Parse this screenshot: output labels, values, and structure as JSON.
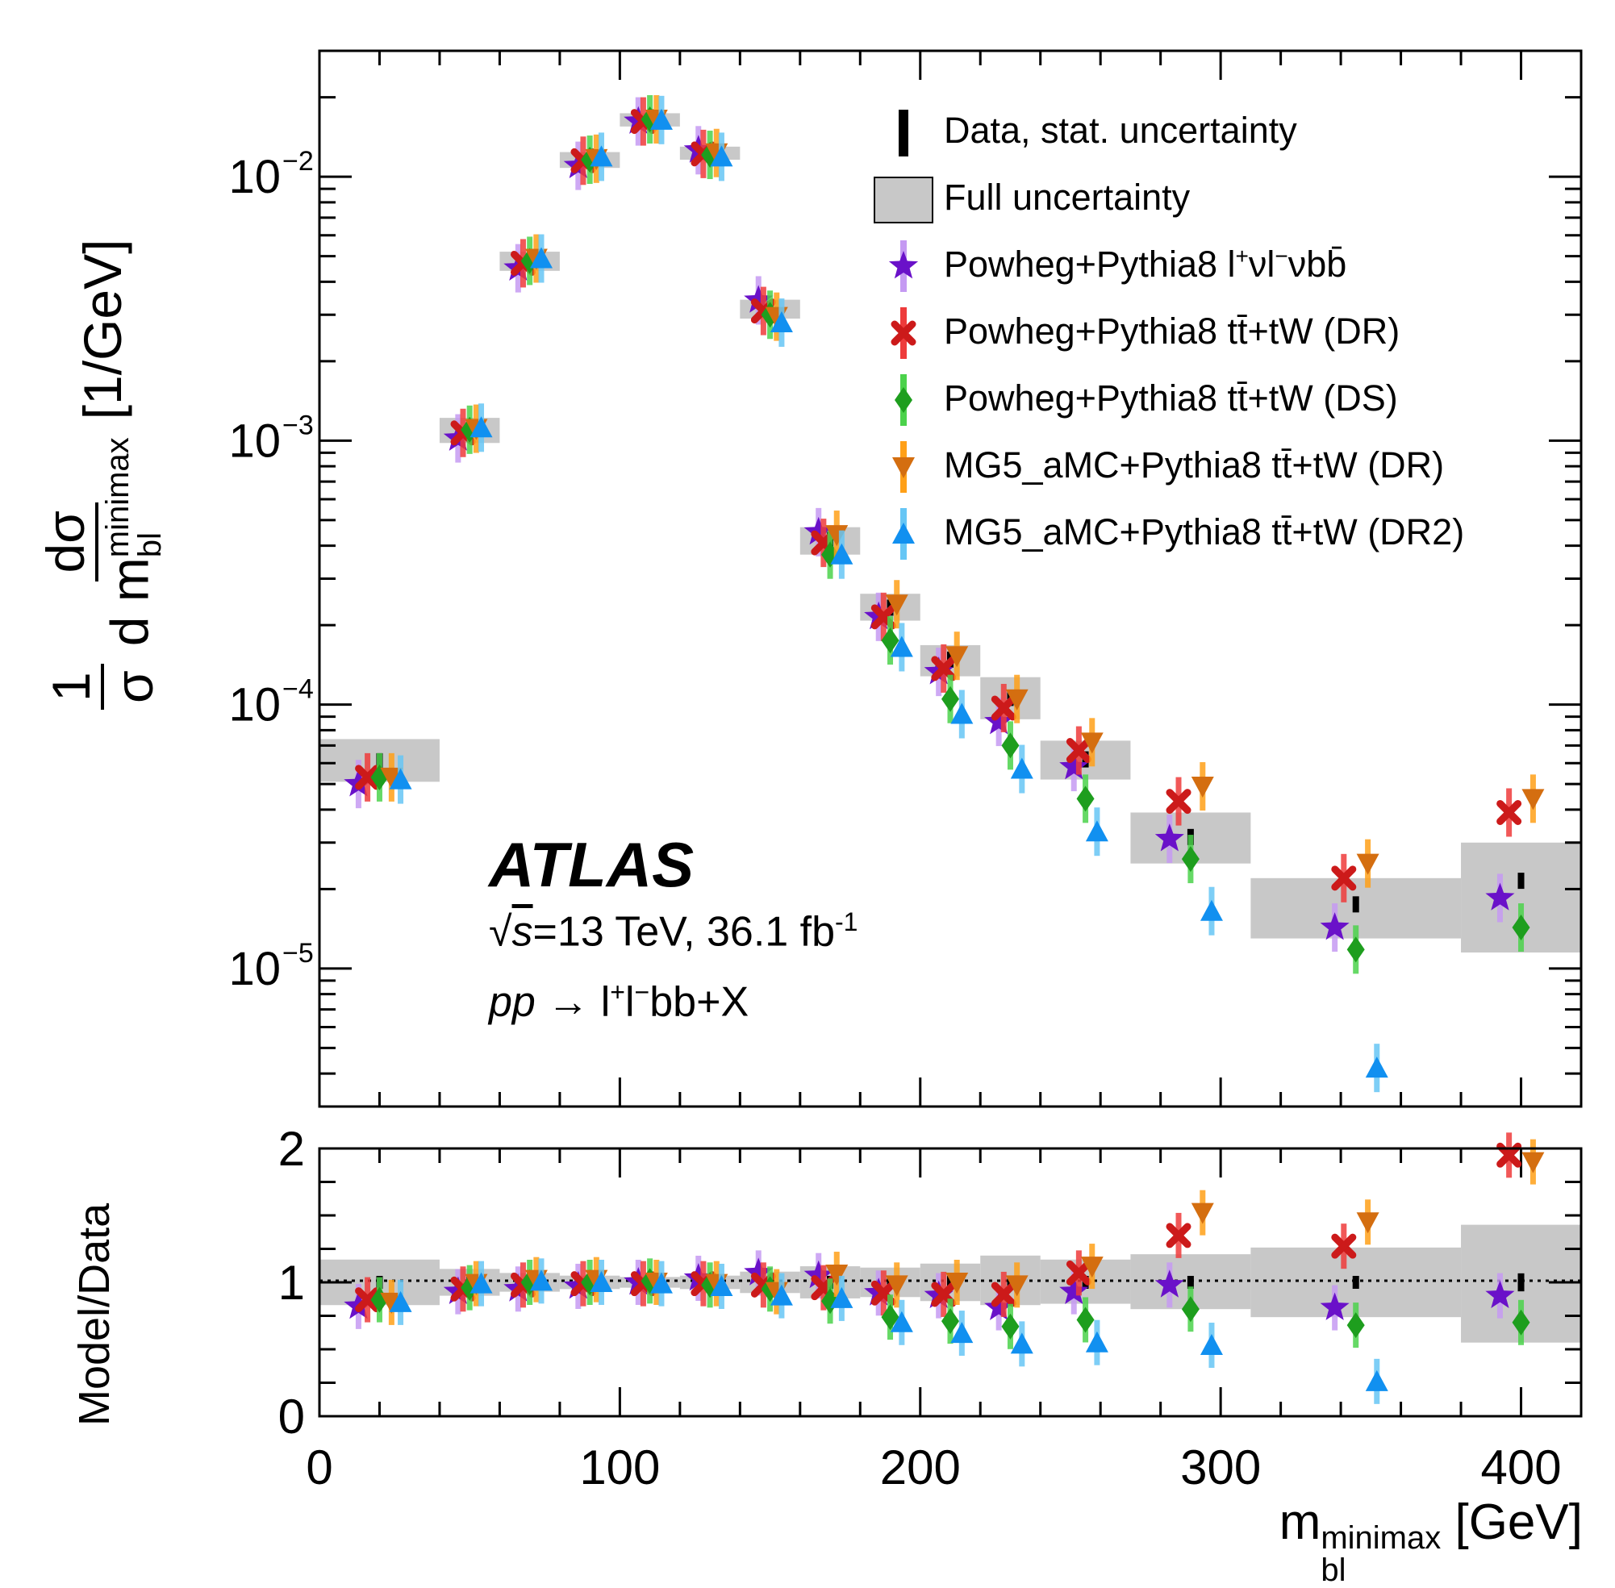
{
  "chart_data": [
    {
      "type": "scatter",
      "panel": "main",
      "xlabel": "m_bl^minimax [GeV]",
      "ylabel": "1/σ dσ/d m_bl^minimax [1/GeV]",
      "yscale": "log",
      "xlim": [
        0,
        420
      ],
      "ylim": [
        3e-06,
        0.03
      ],
      "x_tick_labels": [
        "0",
        "100",
        "200",
        "300",
        "400"
      ],
      "y_tick_labels": [
        {
          "value": 0.01,
          "mantissa": "10",
          "exponent": "−2"
        },
        {
          "value": 0.001,
          "mantissa": "10",
          "exponent": "−3"
        },
        {
          "value": 0.0001,
          "mantissa": "10",
          "exponent": "−4"
        },
        {
          "value": 1e-05,
          "mantissa": "10",
          "exponent": "−5"
        }
      ],
      "bins": [
        [
          0,
          40
        ],
        [
          40,
          60
        ],
        [
          60,
          80
        ],
        [
          80,
          100
        ],
        [
          100,
          120
        ],
        [
          120,
          140
        ],
        [
          140,
          160
        ],
        [
          160,
          180
        ],
        [
          180,
          200
        ],
        [
          200,
          220
        ],
        [
          220,
          240
        ],
        [
          240,
          270
        ],
        [
          270,
          310
        ],
        [
          310,
          380
        ],
        [
          380,
          420
        ]
      ],
      "data": {
        "name": "Data, stat. uncertainty",
        "color": "#000000",
        "values": [
          6.1e-05,
          0.00109,
          0.0048,
          0.0116,
          0.0164,
          0.0123,
          0.00315,
          0.00042,
          0.000233,
          0.000148,
          0.000106,
          6.2e-05,
          3.15e-05,
          1.75e-05,
          2.15e-05
        ],
        "full_unc_lo": [
          5.1e-05,
          0.00098,
          0.0044,
          0.0108,
          0.0155,
          0.0116,
          0.0029,
          0.00037,
          0.000208,
          0.000128,
          8.8e-05,
          5.2e-05,
          2.5e-05,
          1.3e-05,
          1.15e-05
        ],
        "full_unc_hi": [
          7.4e-05,
          0.00122,
          0.0052,
          0.0124,
          0.0174,
          0.013,
          0.00342,
          0.00047,
          0.000263,
          0.000168,
          0.000127,
          7.3e-05,
          3.9e-05,
          2.2e-05,
          3e-05
        ]
      },
      "legend_full_unc": "Full uncertainty",
      "series": [
        {
          "name": "Powheg+Pythia8 l+νl−νbb̄",
          "marker": "star",
          "color": "#6a11c9",
          "err_color": "#c59af2",
          "values": [
            5e-05,
            0.00102,
            0.0045,
            0.011,
            0.0162,
            0.0126,
            0.0034,
            0.00045,
            0.000215,
            0.000133,
            8.6e-05,
            5.8e-05,
            3.1e-05,
            1.43e-05,
            1.85e-05
          ]
        },
        {
          "name": "Powheg+Pythia8 tt̄+tW (DR)",
          "marker": "x",
          "color": "#cc1a1a",
          "err_color": "#ee3b3b",
          "values": [
            5.3e-05,
            0.00107,
            0.0047,
            0.0115,
            0.0162,
            0.0122,
            0.0031,
            0.00041,
            0.000215,
            0.000137,
            9.7e-05,
            6.7e-05,
            4.3e-05,
            2.2e-05,
            3.9e-05
          ]
        },
        {
          "name": "Powheg+Pythia8 tt̄+tW (DS)",
          "marker": "diamond",
          "color": "#1e9e1e",
          "err_color": "#4bd24b",
          "values": [
            5.3e-05,
            0.0011,
            0.0048,
            0.0116,
            0.0165,
            0.0121,
            0.003,
            0.00037,
            0.000175,
            0.000105,
            7e-05,
            4.4e-05,
            2.6e-05,
            1.18e-05,
            1.43e-05
          ]
        },
        {
          "name": "MG5_aMC+Pythia8 tt̄+tW (DR)",
          "marker": "tri_down",
          "color": "#d46e10",
          "err_color": "#ffa018",
          "values": [
            5.3e-05,
            0.00111,
            0.0049,
            0.0117,
            0.0165,
            0.0123,
            0.00295,
            0.00044,
            0.00024,
            0.000153,
            0.000105,
            7.2e-05,
            4.9e-05,
            2.5e-05,
            4.4e-05
          ]
        },
        {
          "name": "MG5_aMC+Pythia8 tt̄+tW (DR2)",
          "marker": "tri_up",
          "color": "#1190f0",
          "err_color": "#66c6f5",
          "values": [
            5.2e-05,
            0.00112,
            0.0049,
            0.0119,
            0.0164,
            0.0119,
            0.0028,
            0.00037,
            0.000165,
            9.2e-05,
            5.7e-05,
            3.3e-05,
            1.65e-05,
            4.2e-06,
            null
          ]
        }
      ]
    },
    {
      "type": "scatter",
      "panel": "ratio",
      "xlabel": "m_bl^minimax [GeV]",
      "ylabel": "Model/Data",
      "xlim": [
        0,
        420
      ],
      "ylim": [
        0,
        2
      ],
      "x_tick_labels": [
        "0",
        "100",
        "200",
        "300",
        "400"
      ],
      "y_tick_labels": [
        "0",
        "1",
        "2"
      ],
      "reference_line": 1,
      "data_full_unc_lo": [
        0.83,
        0.9,
        0.93,
        0.95,
        0.96,
        0.95,
        0.92,
        0.88,
        0.89,
        0.86,
        0.83,
        0.84,
        0.8,
        0.74,
        0.55
      ],
      "data_full_unc_hi": [
        1.17,
        1.1,
        1.07,
        1.05,
        1.04,
        1.05,
        1.08,
        1.12,
        1.11,
        1.14,
        1.2,
        1.17,
        1.21,
        1.26,
        1.43
      ],
      "series": [
        {
          "name": "Powheg+Pythia8 l+νl−νbb̄",
          "values": [
            0.82,
            0.93,
            0.95,
            0.97,
            1.0,
            1.03,
            1.07,
            1.05,
            0.92,
            0.9,
            0.81,
            0.93,
            0.98,
            0.81,
            0.9
          ]
        },
        {
          "name": "Powheg+Pythia8 tt̄+tW (DR)",
          "values": [
            0.87,
            0.95,
            0.98,
            0.99,
            0.99,
            0.99,
            0.98,
            0.96,
            0.92,
            0.91,
            0.91,
            1.07,
            1.35,
            1.27,
            1.95
          ]
        },
        {
          "name": "Powheg+Pythia8 tt̄+tW (DS)",
          "values": [
            0.87,
            0.96,
            1.0,
            1.0,
            1.01,
            0.98,
            0.95,
            0.86,
            0.74,
            0.71,
            0.67,
            0.72,
            0.8,
            0.68,
            0.7
          ]
        },
        {
          "name": "MG5_aMC+Pythia8 tt̄+tW (DR)",
          "values": [
            0.85,
            0.99,
            1.02,
            1.02,
            1.0,
            0.99,
            0.93,
            1.06,
            0.98,
            1.0,
            0.98,
            1.12,
            1.52,
            1.45,
            1.9
          ]
        },
        {
          "name": "MG5_aMC+Pythia8 tt̄+tW (DR2)",
          "values": [
            0.85,
            0.99,
            1.01,
            1.0,
            0.99,
            0.97,
            0.9,
            0.88,
            0.7,
            0.62,
            0.54,
            0.55,
            0.53,
            0.26,
            null
          ]
        }
      ]
    }
  ],
  "texts": {
    "legend_data": "Data, stat. uncertainty",
    "legend_full": "Full uncertainty",
    "legend_powheg_llbb": "Powheg+Pythia8 l",
    "legend_powheg_llbb_sup1": "+",
    "legend_powheg_llbb_mid": "νl",
    "legend_powheg_llbb_sup2": "−",
    "legend_powheg_llbb_end": "νbb̄",
    "legend_dr": "Powheg+Pythia8 tt̄+tW (DR)",
    "legend_ds": "Powheg+Pythia8 tt̄+tW (DS)",
    "legend_mg_dr": "MG5_aMC+Pythia8 tt̄+tW (DR)",
    "legend_mg_dr2": "MG5_aMC+Pythia8 tt̄+tW (DR2)",
    "atlas": "ATLAS",
    "sqrt": "√",
    "energy_s": "s",
    "energy_rest": "=13 TeV, 36.1 fb",
    "energy_exp": "-1",
    "process_pp": "pp",
    "process_rest": " → l",
    "process_sup1": "+",
    "process_mid": "l",
    "process_sup2": "−",
    "process_end": "bb+X",
    "ylabel_one": "1",
    "ylabel_sigma": "σ",
    "ylabel_dsigma": "dσ",
    "ylabel_d": "d m",
    "ylabel_sub": "bl",
    "ylabel_sup": "minimax",
    "ylabel_unit": "[1/GeV]",
    "ratio_ylabel": "Model/Data",
    "xlabel_m": "m",
    "xlabel_sub": "bl",
    "xlabel_sup": "minimax",
    "xlabel_unit": "[GeV]"
  }
}
